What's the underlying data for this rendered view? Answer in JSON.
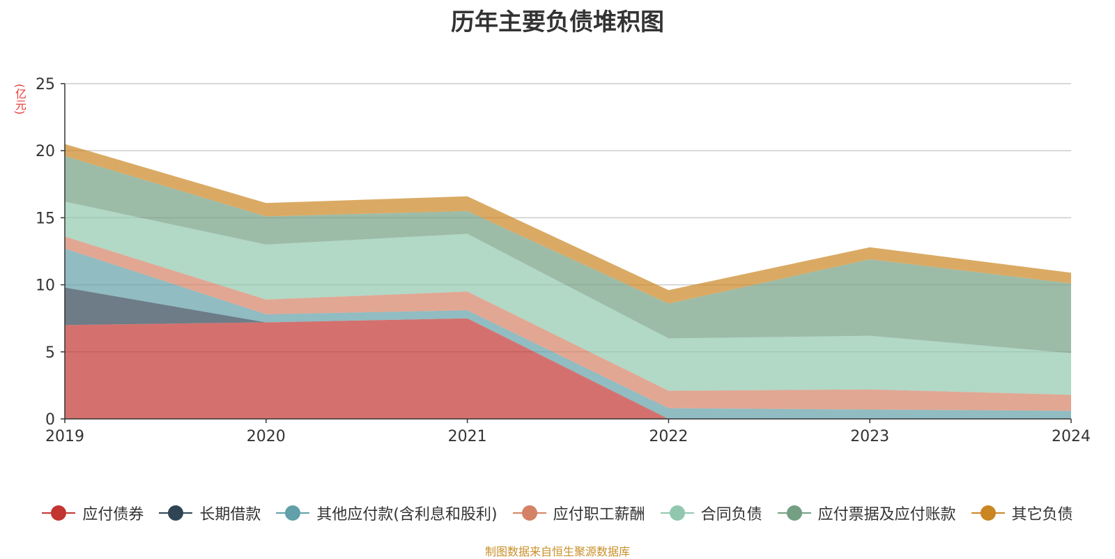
{
  "chart_data": {
    "type": "area",
    "stacked": true,
    "title": "历年主要负债堆积图",
    "y_unit_label": "(亿元)",
    "x": [
      "2019",
      "2020",
      "2021",
      "2022",
      "2023",
      "2024"
    ],
    "ylim": [
      0,
      25
    ],
    "yticks": [
      0,
      5,
      10,
      15,
      20,
      25
    ],
    "grid": true,
    "legend_position": "bottom",
    "series": [
      {
        "name": "应付债券",
        "color": "#c23531",
        "values": [
          7.0,
          7.2,
          7.5,
          0.0,
          0.0,
          0.0
        ]
      },
      {
        "name": "长期借款",
        "color": "#2f4554",
        "values": [
          2.8,
          0.0,
          0.0,
          0.0,
          0.0,
          0.0
        ]
      },
      {
        "name": "其他应付款(含利息和股利)",
        "color": "#61a0a8",
        "values": [
          2.9,
          0.6,
          0.6,
          0.8,
          0.7,
          0.6
        ]
      },
      {
        "name": "应付职工薪酬",
        "color": "#d48265",
        "values": [
          0.9,
          1.1,
          1.4,
          1.3,
          1.5,
          1.2
        ]
      },
      {
        "name": "合同负债",
        "color": "#91c7ae",
        "values": [
          2.6,
          4.1,
          4.3,
          3.9,
          4.0,
          3.1
        ]
      },
      {
        "name": "应付票据及应付账款",
        "color": "#749f83",
        "values": [
          3.4,
          2.1,
          1.7,
          2.6,
          5.7,
          5.2
        ]
      },
      {
        "name": "其它负债",
        "color": "#ca8622",
        "values": [
          0.9,
          1.0,
          1.1,
          1.0,
          0.9,
          0.8
        ]
      }
    ]
  },
  "source_note": "制图数据来自恒生聚源数据库"
}
